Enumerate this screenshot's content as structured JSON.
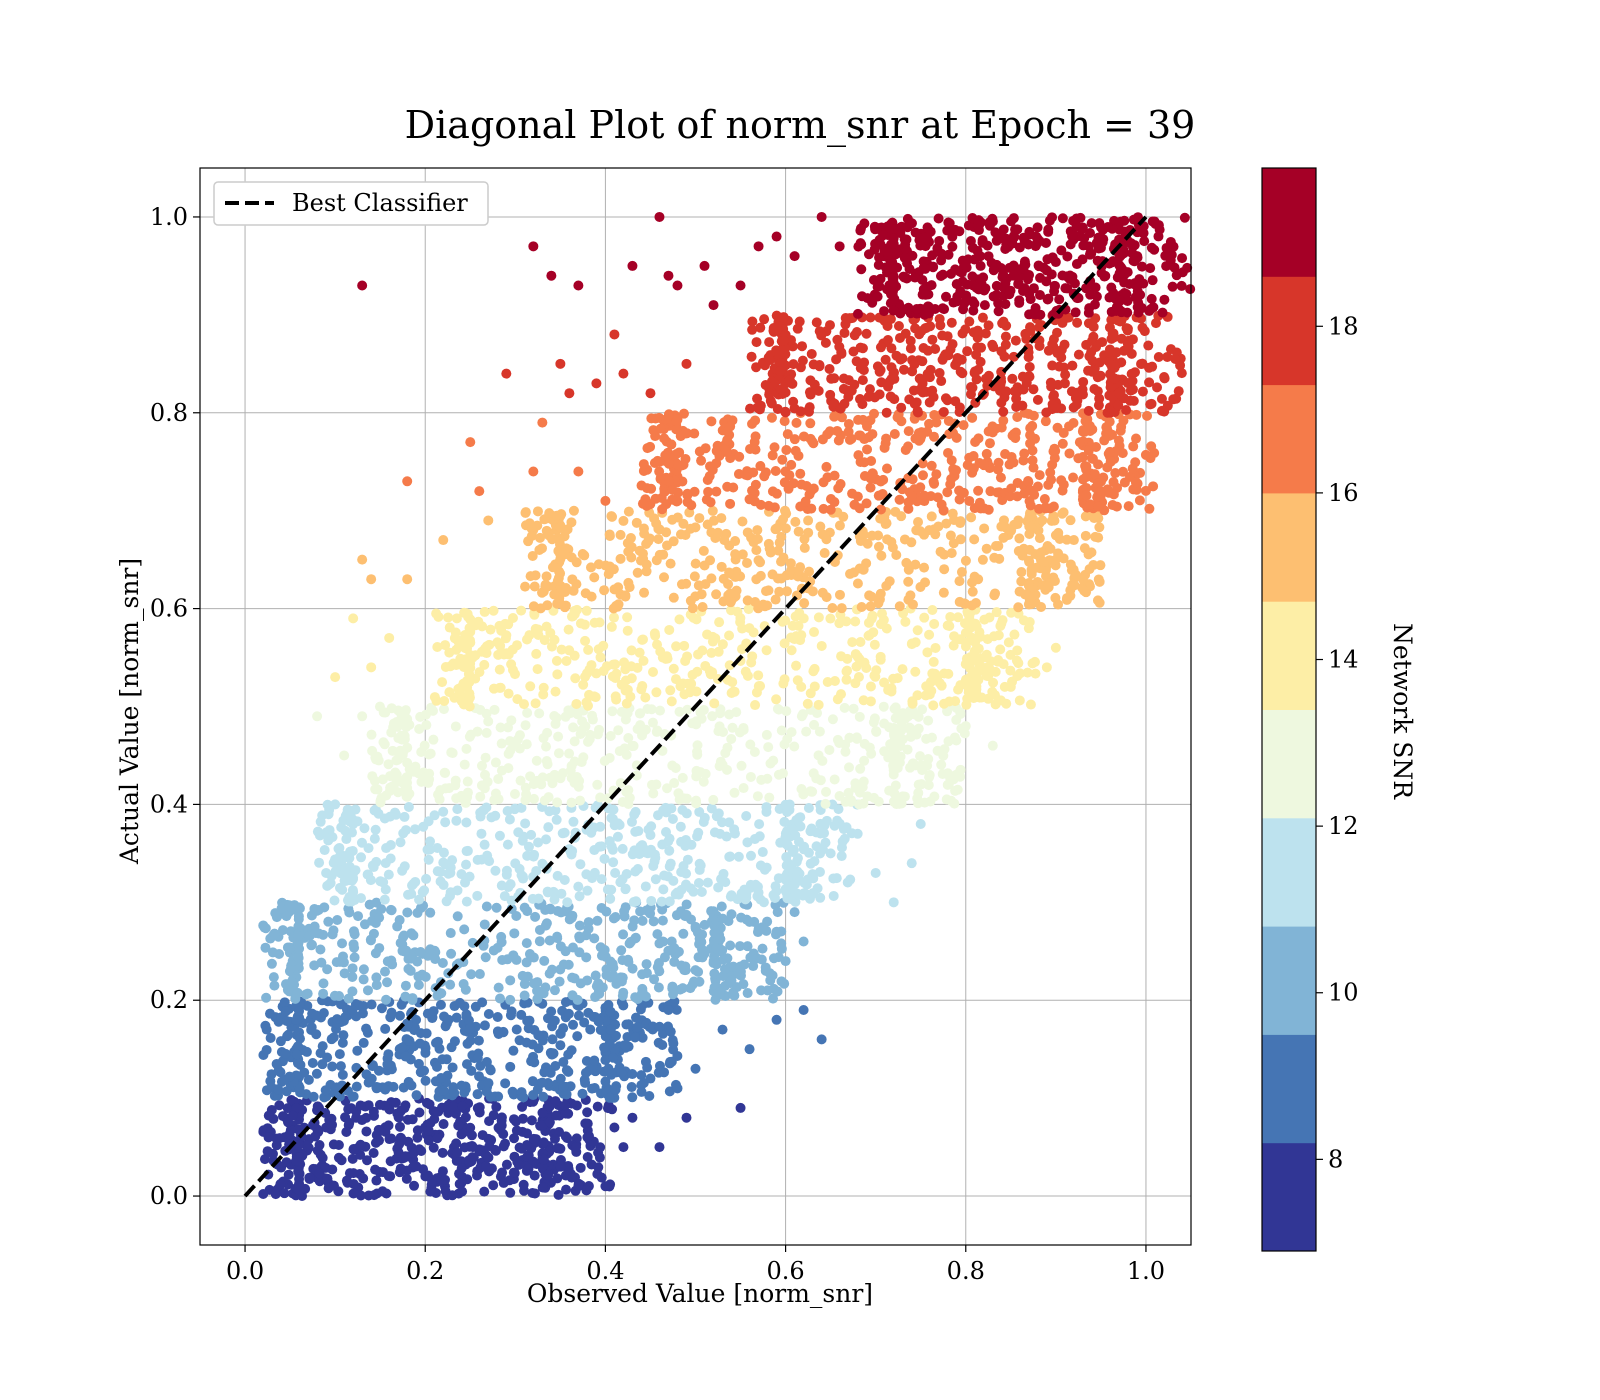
{
  "chart_data": {
    "type": "scatter",
    "title": "Diagonal Plot of norm_snr at Epoch = 39",
    "xlabel": "Observed Value [norm_snr]",
    "ylabel": "Actual Value [norm_snr]",
    "xlim": [
      -0.05,
      1.05
    ],
    "ylim": [
      -0.05,
      1.05
    ],
    "x_ticks": [
      0.0,
      0.2,
      0.4,
      0.6,
      0.8,
      1.0
    ],
    "y_ticks": [
      0.0,
      0.2,
      0.4,
      0.6,
      0.8,
      1.0
    ],
    "x_tick_labels": [
      "0.0",
      "0.2",
      "0.4",
      "0.6",
      "0.8",
      "1.0"
    ],
    "y_tick_labels": [
      "0.0",
      "0.2",
      "0.4",
      "0.6",
      "0.8",
      "1.0"
    ],
    "grid": true,
    "legend": {
      "placement": "top-left",
      "entries": [
        "Best Classifier"
      ]
    },
    "reference_line": {
      "name": "Best Classifier",
      "x": [
        0.0,
        1.0
      ],
      "y": [
        0.0,
        1.0
      ],
      "style": "dashed",
      "color": "#000000"
    },
    "colorbar": {
      "label": "Network SNR",
      "range": [
        6.9,
        19.9
      ],
      "tick_values": [
        8,
        10,
        12,
        14,
        16,
        18
      ],
      "tick_labels": [
        "8",
        "10",
        "12",
        "14",
        "16",
        "18"
      ],
      "colors": [
        "#313695",
        "#4575b4",
        "#81b4d6",
        "#bde2ee",
        "#eef8df",
        "#fdeea6",
        "#fdbf71",
        "#f57b4a",
        "#d7362a",
        "#a50026"
      ]
    },
    "bands": [
      {
        "y_range": [
          0.0,
          0.1
        ],
        "core_x": [
          0.06,
          0.33
        ],
        "outliers": [
          [
            0.49,
            0.08
          ],
          [
            0.55,
            0.09
          ],
          [
            0.46,
            0.05
          ],
          [
            0.42,
            0.05
          ],
          [
            0.4,
            0.01
          ],
          [
            0.37,
            0.01
          ],
          [
            0.35,
            0.03
          ],
          [
            0.38,
            0.06
          ],
          [
            0.43,
            0.08
          ],
          [
            0.41,
            0.07
          ]
        ]
      },
      {
        "y_range": [
          0.1,
          0.2
        ],
        "core_x": [
          0.06,
          0.4
        ],
        "outliers": [
          [
            0.64,
            0.16
          ],
          [
            0.62,
            0.19
          ],
          [
            0.59,
            0.18
          ],
          [
            0.56,
            0.15
          ],
          [
            0.53,
            0.17
          ],
          [
            0.5,
            0.13
          ],
          [
            0.48,
            0.11
          ],
          [
            0.47,
            0.19
          ],
          [
            0.45,
            0.12
          ]
        ]
      },
      {
        "y_range": [
          0.2,
          0.3
        ],
        "core_x": [
          0.06,
          0.52
        ],
        "outliers": [
          [
            0.62,
            0.26
          ],
          [
            0.6,
            0.24
          ],
          [
            0.58,
            0.21
          ],
          [
            0.61,
            0.29
          ],
          [
            0.56,
            0.28
          ],
          [
            0.54,
            0.22
          ],
          [
            0.59,
            0.27
          ]
        ]
      },
      {
        "y_range": [
          0.3,
          0.4
        ],
        "core_x": [
          0.12,
          0.6
        ],
        "outliers": [
          [
            0.72,
            0.3
          ],
          [
            0.74,
            0.34
          ],
          [
            0.75,
            0.38
          ],
          [
            0.7,
            0.33
          ],
          [
            0.68,
            0.37
          ],
          [
            0.65,
            0.35
          ],
          [
            0.1,
            0.4
          ],
          [
            0.09,
            0.33
          ]
        ]
      },
      {
        "y_range": [
          0.4,
          0.5
        ],
        "core_x": [
          0.18,
          0.72
        ],
        "outliers": [
          [
            0.83,
            0.46
          ],
          [
            0.78,
            0.42
          ],
          [
            0.8,
            0.48
          ],
          [
            0.76,
            0.43
          ],
          [
            0.11,
            0.45
          ],
          [
            0.13,
            0.49
          ],
          [
            0.08,
            0.49
          ]
        ]
      },
      {
        "y_range": [
          0.5,
          0.6
        ],
        "core_x": [
          0.25,
          0.8
        ],
        "outliers": [
          [
            0.9,
            0.56
          ],
          [
            0.89,
            0.54
          ],
          [
            0.85,
            0.52
          ],
          [
            0.87,
            0.58
          ],
          [
            0.1,
            0.53
          ],
          [
            0.14,
            0.54
          ],
          [
            0.12,
            0.59
          ],
          [
            0.16,
            0.57
          ]
        ]
      },
      {
        "y_range": [
          0.6,
          0.7
        ],
        "core_x": [
          0.35,
          0.87
        ],
        "outliers": [
          [
            0.93,
            0.63
          ],
          [
            0.92,
            0.67
          ],
          [
            0.9,
            0.65
          ],
          [
            0.13,
            0.65
          ],
          [
            0.14,
            0.63
          ],
          [
            0.18,
            0.63
          ],
          [
            0.22,
            0.67
          ],
          [
            0.27,
            0.69
          ]
        ]
      },
      {
        "y_range": [
          0.7,
          0.8
        ],
        "core_x": [
          0.48,
          0.93
        ],
        "outliers": [
          [
            0.95,
            0.72
          ],
          [
            0.96,
            0.76
          ],
          [
            0.18,
            0.73
          ],
          [
            0.25,
            0.77
          ],
          [
            0.26,
            0.72
          ],
          [
            0.33,
            0.79
          ],
          [
            0.32,
            0.74
          ],
          [
            0.37,
            0.74
          ],
          [
            0.4,
            0.71
          ]
        ]
      },
      {
        "y_range": [
          0.8,
          0.9
        ],
        "core_x": [
          0.6,
          0.96
        ],
        "outliers": [
          [
            0.98,
            0.87
          ],
          [
            0.97,
            0.82
          ],
          [
            0.41,
            0.88
          ],
          [
            0.29,
            0.84
          ],
          [
            0.35,
            0.85
          ],
          [
            0.36,
            0.82
          ],
          [
            0.39,
            0.83
          ],
          [
            0.42,
            0.84
          ],
          [
            0.45,
            0.82
          ],
          [
            0.49,
            0.85
          ]
        ]
      },
      {
        "y_range": [
          0.9,
          1.0
        ],
        "core_x": [
          0.72,
          0.97
        ],
        "outliers": [
          [
            0.13,
            0.93
          ],
          [
            0.32,
            0.97
          ],
          [
            0.34,
            0.94
          ],
          [
            0.37,
            0.93
          ],
          [
            0.46,
            1.0
          ],
          [
            0.43,
            0.95
          ],
          [
            0.47,
            0.94
          ],
          [
            0.48,
            0.93
          ],
          [
            0.51,
            0.95
          ],
          [
            0.52,
            0.91
          ],
          [
            0.55,
            0.93
          ],
          [
            0.57,
            0.97
          ],
          [
            0.59,
            0.98
          ],
          [
            0.61,
            0.96
          ],
          [
            0.64,
            1.0
          ],
          [
            0.66,
            0.97
          ]
        ]
      }
    ]
  }
}
